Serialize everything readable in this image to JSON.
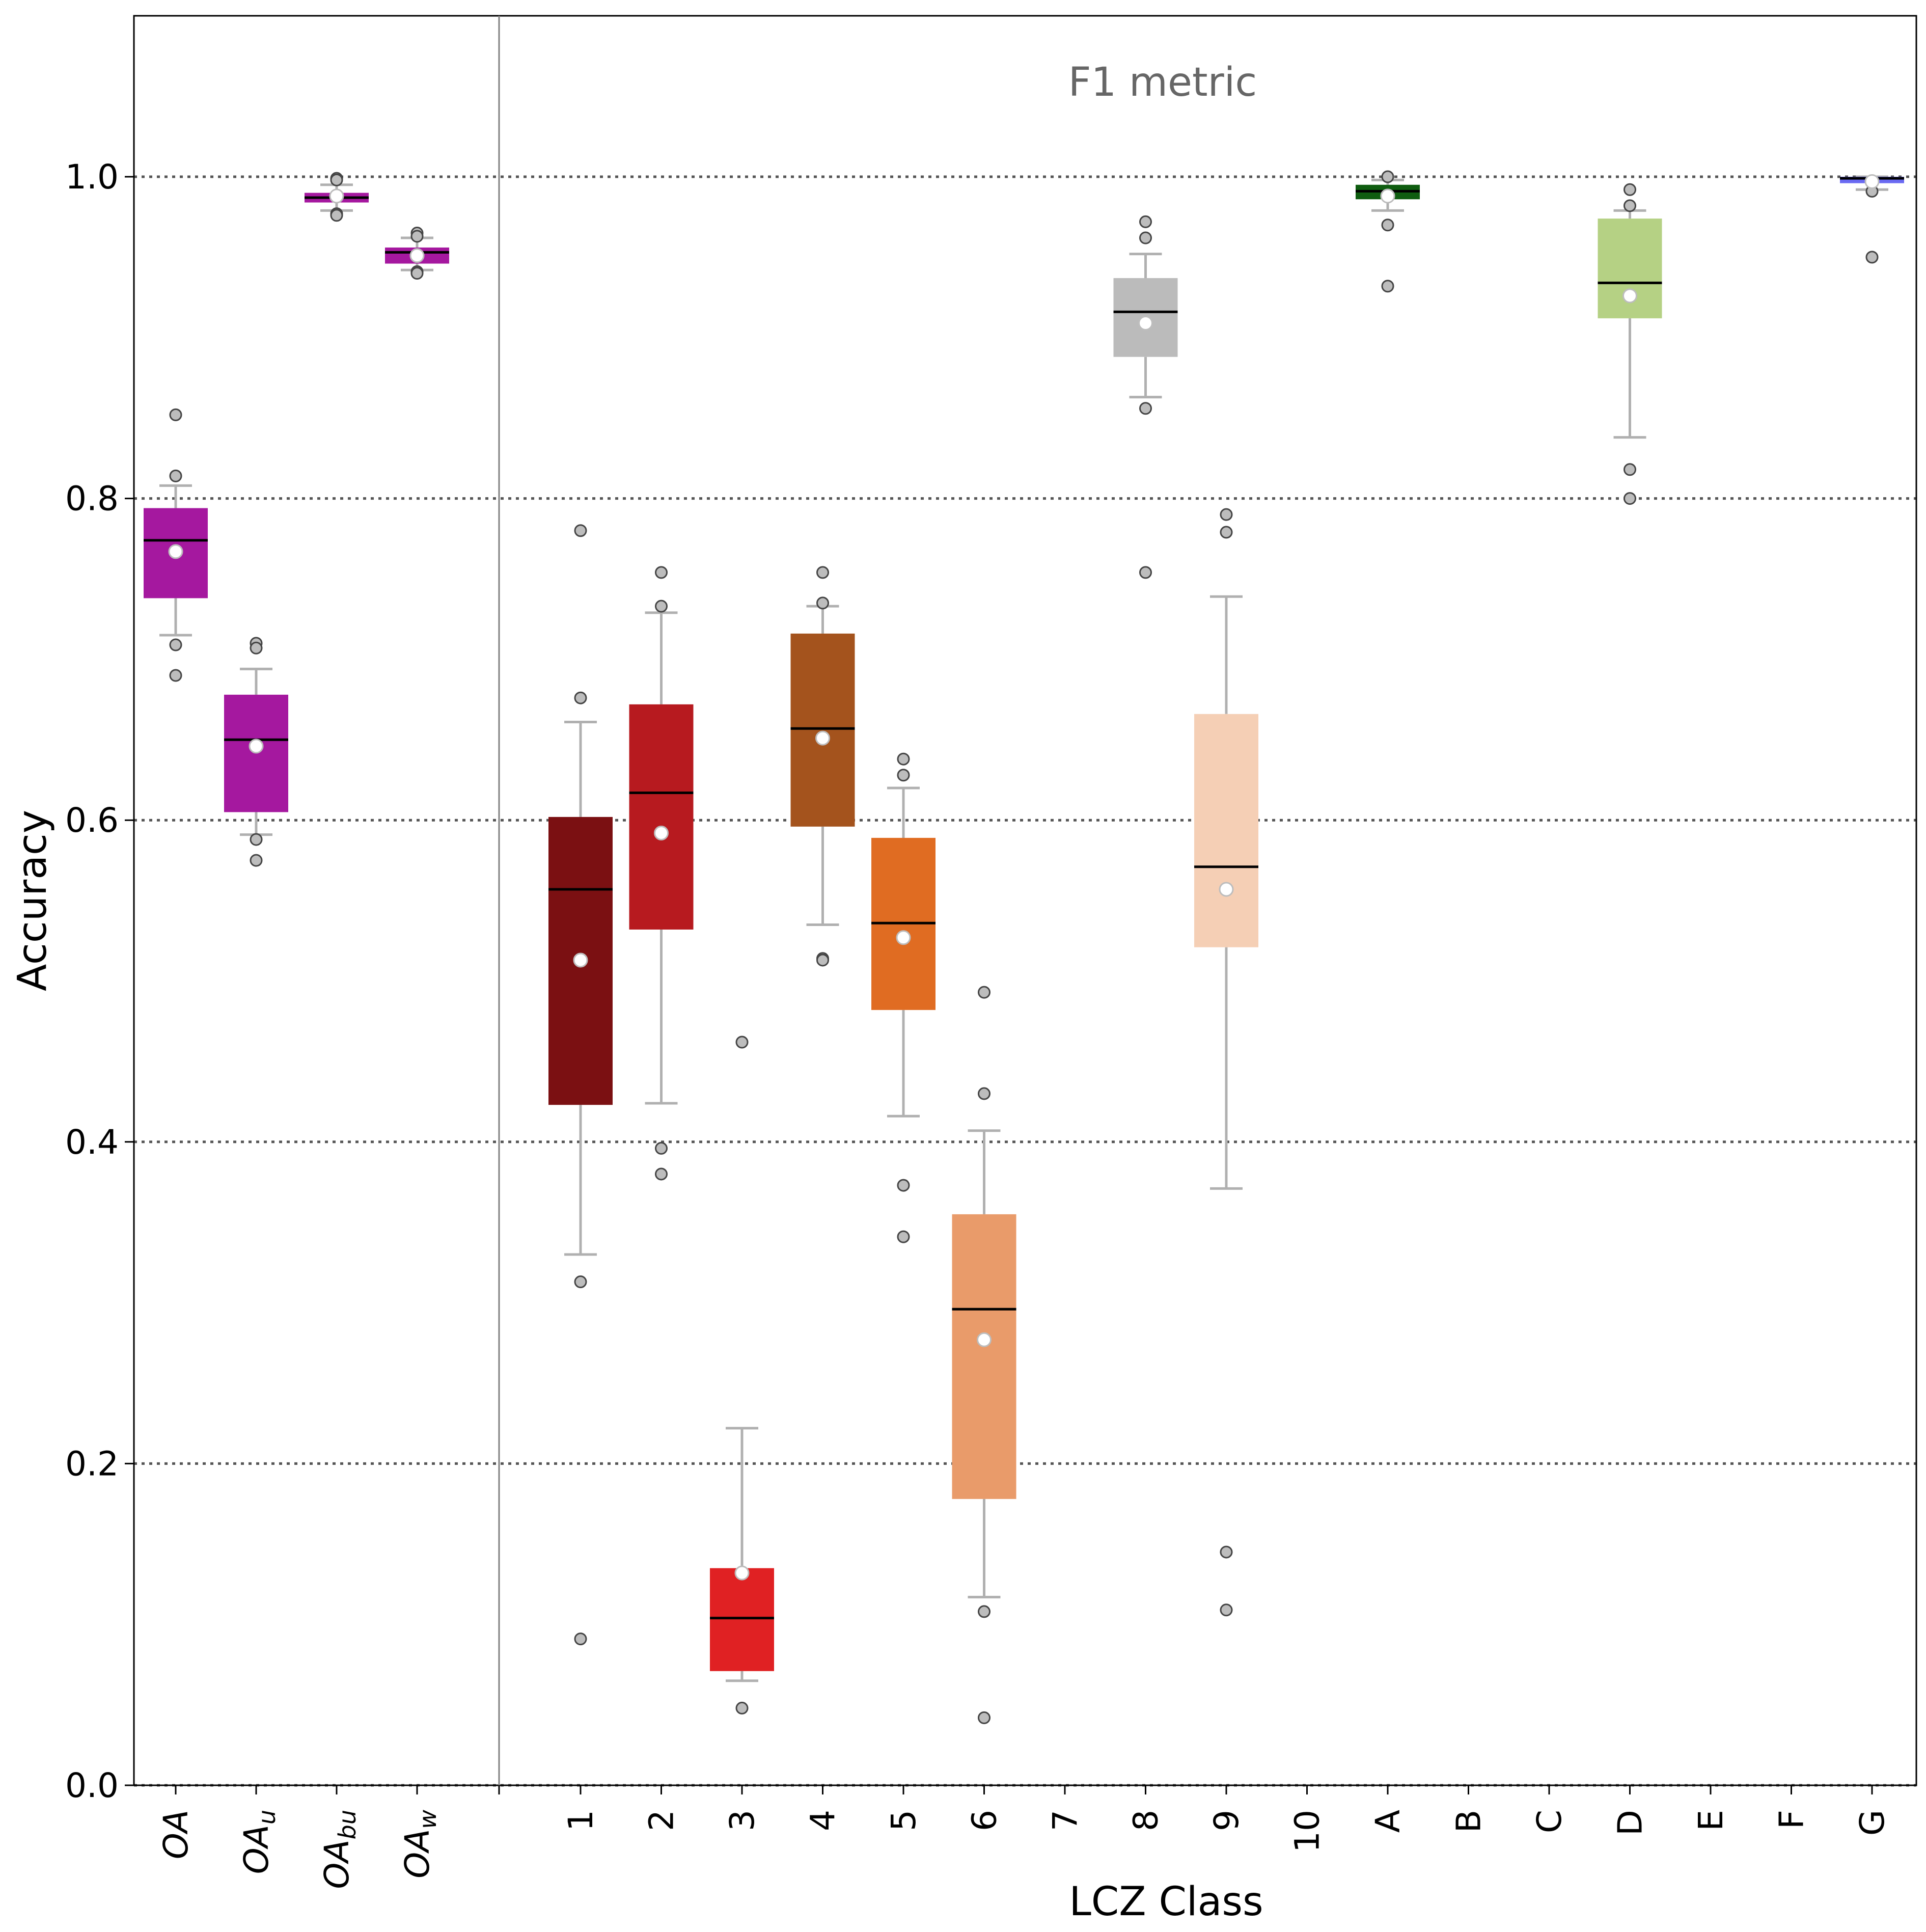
{
  "chart_data": {
    "type": "box",
    "title": "F1 metric",
    "xlabel": "LCZ Class",
    "ylabel": "Accuracy",
    "ylim": [
      0.0,
      1.1
    ],
    "yticks": [
      0.0,
      0.2,
      0.4,
      0.6,
      0.8,
      1.0
    ],
    "ytick_labels": [
      "0.0",
      "0.2",
      "0.4",
      "0.6",
      "0.8",
      "1.0"
    ],
    "grid": "horizontal dotted lines at y ticks",
    "overall_panel": {
      "categories": [
        {
          "label": "OA",
          "base": "OA",
          "sub": "",
          "color": "#a5189f",
          "q1": 0.738,
          "median": 0.774,
          "q3": 0.794,
          "whisker_low": 0.715,
          "whisker_high": 0.808,
          "mean": 0.767,
          "outliers": [
            0.852,
            0.814,
            0.709,
            0.69
          ]
        },
        {
          "label": "OAu",
          "base": "OA",
          "sub": "u",
          "color": "#a5189f",
          "q1": 0.605,
          "median": 0.65,
          "q3": 0.678,
          "whisker_low": 0.591,
          "whisker_high": 0.694,
          "mean": 0.646,
          "outliers": [
            0.71,
            0.707,
            0.588,
            0.575
          ]
        },
        {
          "label": "OAbu",
          "base": "OA",
          "sub": "bu",
          "color": "#a5189f",
          "q1": 0.984,
          "median": 0.987,
          "q3": 0.99,
          "whisker_low": 0.979,
          "whisker_high": 0.995,
          "mean": 0.988,
          "outliers": [
            0.999,
            0.998,
            0.977,
            0.976
          ]
        },
        {
          "label": "OAw",
          "base": "OA",
          "sub": "w",
          "color": "#a5189f",
          "q1": 0.946,
          "median": 0.953,
          "q3": 0.956,
          "whisker_low": 0.942,
          "whisker_high": 0.962,
          "mean": 0.951,
          "outliers": [
            0.965,
            0.963,
            0.941,
            0.94
          ]
        }
      ]
    },
    "class_panel": {
      "categories": [
        {
          "label": "1",
          "color": "#7b1012",
          "q1": 0.423,
          "median": 0.557,
          "q3": 0.602,
          "whisker_low": 0.33,
          "whisker_high": 0.661,
          "mean": 0.513,
          "outliers": [
            0.78,
            0.676,
            0.313,
            0.091
          ]
        },
        {
          "label": "2",
          "color": "#b71a1f",
          "q1": 0.532,
          "median": 0.617,
          "q3": 0.672,
          "whisker_low": 0.424,
          "whisker_high": 0.729,
          "mean": 0.592,
          "outliers": [
            0.754,
            0.733,
            0.396,
            0.38
          ]
        },
        {
          "label": "3",
          "color": "#e02123",
          "q1": 0.071,
          "median": 0.104,
          "q3": 0.135,
          "whisker_low": 0.065,
          "whisker_high": 0.222,
          "mean": 0.132,
          "outliers": [
            0.462,
            0.048
          ]
        },
        {
          "label": "4",
          "color": "#a4531d",
          "q1": 0.596,
          "median": 0.657,
          "q3": 0.716,
          "whisker_low": 0.535,
          "whisker_high": 0.733,
          "mean": 0.651,
          "outliers": [
            0.754,
            0.735,
            0.514,
            0.513
          ]
        },
        {
          "label": "5",
          "color": "#e06c22",
          "q1": 0.482,
          "median": 0.536,
          "q3": 0.589,
          "whisker_low": 0.416,
          "whisker_high": 0.62,
          "mean": 0.527,
          "outliers": [
            0.638,
            0.628,
            0.373,
            0.341
          ]
        },
        {
          "label": "6",
          "color": "#e99b6a",
          "q1": 0.178,
          "median": 0.296,
          "q3": 0.355,
          "whisker_low": 0.117,
          "whisker_high": 0.407,
          "mean": 0.277,
          "outliers": [
            0.493,
            0.43,
            0.108,
            0.042
          ]
        },
        {
          "label": "7",
          "color": "#d9d9d9"
        },
        {
          "label": "8",
          "color": "#bbbbbb",
          "q1": 0.888,
          "median": 0.916,
          "q3": 0.937,
          "whisker_low": 0.863,
          "whisker_high": 0.952,
          "mean": 0.909,
          "outliers": [
            0.972,
            0.962,
            0.856,
            0.754
          ]
        },
        {
          "label": "9",
          "color": "#f5cfb5",
          "q1": 0.521,
          "median": 0.571,
          "q3": 0.666,
          "whisker_low": 0.371,
          "whisker_high": 0.739,
          "mean": 0.557,
          "outliers": [
            0.79,
            0.779,
            0.145,
            0.109
          ]
        },
        {
          "label": "10",
          "color": "#555555"
        },
        {
          "label": "A",
          "color": "#0f5d10",
          "q1": 0.986,
          "median": 0.991,
          "q3": 0.995,
          "whisker_low": 0.979,
          "whisker_high": 0.998,
          "mean": 0.988,
          "outliers": [
            1.0,
            0.97,
            0.932
          ]
        },
        {
          "label": "B",
          "color": "#2a8a2a"
        },
        {
          "label": "C",
          "color": "#6aa84f"
        },
        {
          "label": "D",
          "color": "#b5d184",
          "q1": 0.912,
          "median": 0.934,
          "q3": 0.974,
          "whisker_low": 0.838,
          "whisker_high": 0.979,
          "mean": 0.926,
          "outliers": [
            0.992,
            0.982,
            0.818,
            0.8
          ]
        },
        {
          "label": "E",
          "color": "#000000"
        },
        {
          "label": "F",
          "color": "#fbf7ae"
        },
        {
          "label": "G",
          "color": "#6a6af2",
          "q1": 0.996,
          "median": 0.999,
          "q3": 1.0,
          "whisker_low": 0.992,
          "whisker_high": 1.0,
          "mean": 0.997,
          "outliers": [
            0.991,
            0.95
          ]
        }
      ]
    }
  }
}
